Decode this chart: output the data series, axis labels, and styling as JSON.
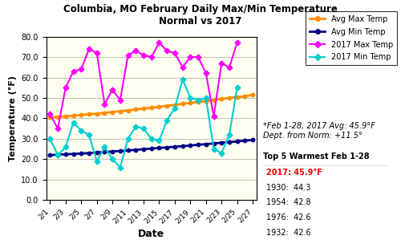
{
  "title": "Columbia, MO February Daily Max/Min Temperature\nNormal vs 2017",
  "xlabel": "Date",
  "ylabel": "Temperature (°F)",
  "background_color": "#FFFFF0",
  "x_labels": [
    "2/1",
    "2/3",
    "2/5",
    "2/7",
    "2/9",
    "2/11",
    "2/13",
    "2/15",
    "2/17",
    "2/19",
    "2/21",
    "2/23",
    "2/25",
    "2/27"
  ],
  "x_indices": [
    1,
    3,
    5,
    7,
    9,
    11,
    13,
    15,
    17,
    19,
    21,
    23,
    25,
    27
  ],
  "avg_max": [
    40.4,
    40.7,
    41.0,
    41.3,
    41.6,
    42.0,
    42.3,
    42.7,
    43.1,
    43.5,
    43.9,
    44.3,
    44.8,
    45.2,
    45.7,
    46.1,
    46.6,
    47.1,
    47.6,
    48.0,
    48.5,
    49.0,
    49.5,
    50.0,
    50.4,
    50.9,
    51.4
  ],
  "avg_min": [
    22.0,
    22.2,
    22.4,
    22.6,
    22.8,
    23.0,
    23.3,
    23.5,
    23.8,
    24.0,
    24.3,
    24.6,
    24.9,
    25.2,
    25.5,
    25.8,
    26.1,
    26.4,
    26.7,
    27.1,
    27.4,
    27.7,
    28.1,
    28.4,
    28.7,
    29.1,
    29.4
  ],
  "max_2017": [
    42,
    35,
    55,
    63,
    64,
    74,
    72,
    47,
    54,
    49,
    71,
    73,
    71,
    70,
    77,
    73,
    72,
    65,
    70,
    70,
    62,
    41,
    67,
    65,
    77
  ],
  "min_2017": [
    30,
    22,
    26,
    38,
    34,
    32,
    19,
    26,
    20,
    16,
    30,
    36,
    35,
    30,
    29,
    39,
    45,
    59,
    50,
    49,
    50,
    25,
    23,
    32,
    55
  ],
  "avg_max_color": "#FF8C00",
  "avg_min_color": "#00008B",
  "max_2017_color": "#FF00FF",
  "min_2017_color": "#00CED1",
  "ylim": [
    0.0,
    80.0
  ],
  "yticks": [
    0.0,
    10.0,
    20.0,
    30.0,
    40.0,
    50.0,
    60.0,
    70.0,
    80.0
  ],
  "annotation_text": "*Feb 1-28, 2017 Avg: 45.9°F\nDept. from Norm: +11.5°",
  "top5_title": "Top 5 Warmest Feb 1-28",
  "top5_entries": [
    {
      "year": "2017: 45.9°F",
      "color": "red"
    },
    {
      "year": "1930:  44.3",
      "color": "black"
    },
    {
      "year": "1954:  42.8",
      "color": "black"
    },
    {
      "year": "1976:  42.6",
      "color": "black"
    },
    {
      "year": "1932:  42.6",
      "color": "black"
    }
  ]
}
